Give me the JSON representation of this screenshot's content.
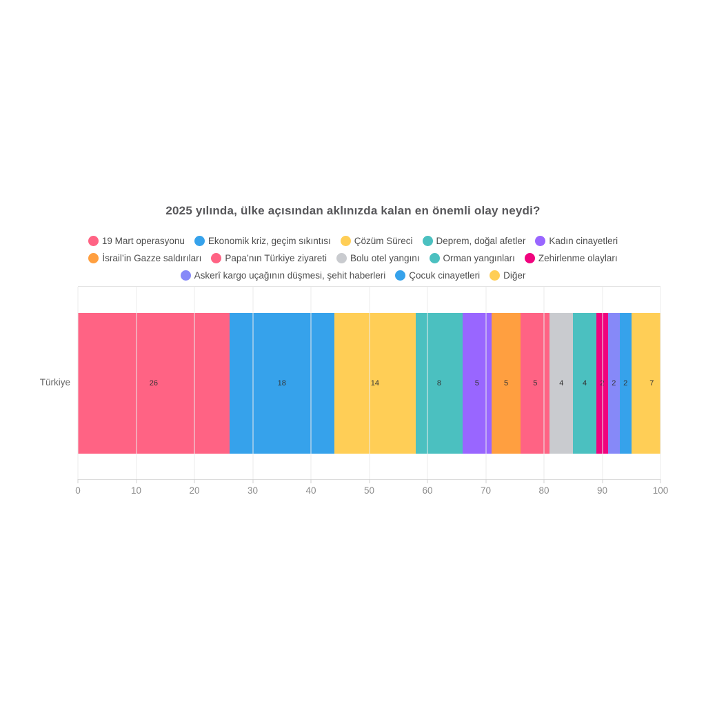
{
  "chart_data": {
    "type": "bar",
    "orientation": "horizontal",
    "stacked": true,
    "title": "2025 yılında, ülke açısından aklınızda kalan en önemli olay neydi?",
    "categories": [
      "Türkiye"
    ],
    "series": [
      {
        "name": "19 Mart operasyonu",
        "color": "#FF6384",
        "value": 26
      },
      {
        "name": "Ekonomik kriz, geçim sıkıntısı",
        "color": "#36A2EB",
        "value": 18
      },
      {
        "name": "Çözüm Süreci",
        "color": "#FFCE56",
        "value": 14
      },
      {
        "name": "Deprem, doğal afetler",
        "color": "#4BC0C0",
        "value": 8
      },
      {
        "name": "Kadın cinayetleri",
        "color": "#9966FF",
        "value": 5
      },
      {
        "name": "İsrail’in Gazze saldırıları",
        "color": "#FF9F40",
        "value": 5
      },
      {
        "name": "Papa’nın Türkiye ziyareti",
        "color": "#FF6384",
        "value": 5
      },
      {
        "name": "Bolu otel yangını",
        "color": "#C9CBCF",
        "value": 4
      },
      {
        "name": "Orman yangınları",
        "color": "#4BC0C0",
        "value": 4
      },
      {
        "name": "Zehirlenme olayları",
        "color": "#F0047E",
        "value": 2
      },
      {
        "name": "Askerî kargo uçağının düşmesi, şehit haberleri",
        "color": "#8689F8",
        "value": 2
      },
      {
        "name": "Çocuk cinayetleri",
        "color": "#36A2EB",
        "value": 2
      },
      {
        "name": "Diğer",
        "color": "#FFCE56",
        "value": 7
      }
    ],
    "legend_rows": [
      [
        0,
        1,
        2,
        3,
        4
      ],
      [
        5,
        6,
        7,
        8,
        9
      ],
      [
        10,
        11,
        12
      ]
    ],
    "xlabel": "",
    "ylabel": "",
    "xlim": [
      0,
      100
    ],
    "xticks": [
      0,
      10,
      20,
      30,
      40,
      50,
      60,
      70,
      80,
      90,
      100
    ],
    "grid": true,
    "legend_position": "top"
  }
}
